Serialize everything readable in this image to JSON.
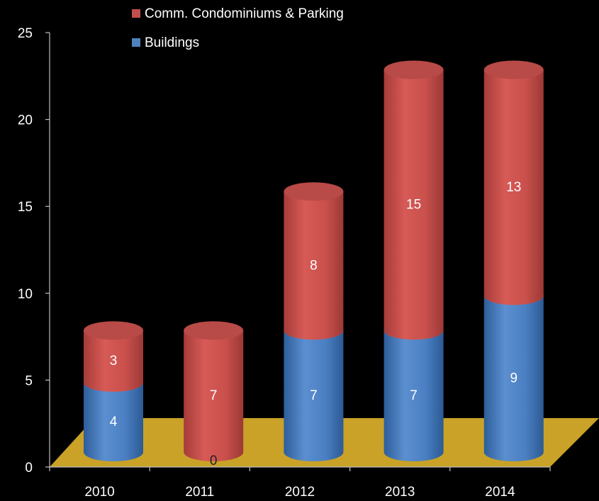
{
  "chart_data": {
    "type": "bar",
    "stacked": true,
    "style": "3d-cylinder",
    "categories": [
      "2010",
      "2011",
      "2012",
      "2013",
      "2014"
    ],
    "series": [
      {
        "name": "Buildings",
        "values": [
          4,
          0,
          7,
          7,
          9
        ],
        "color": "#4F81BD"
      },
      {
        "name": "Comm. Condominiums & Parking",
        "values": [
          3,
          7,
          8,
          15,
          13
        ],
        "color": "#C0504D"
      }
    ],
    "ylim": [
      0,
      25
    ],
    "yticks": [
      "0",
      "5",
      "10",
      "15",
      "20",
      "25"
    ],
    "legend_position": "top",
    "floor_color": "#C9A227",
    "background": "#000000",
    "grid": false
  }
}
